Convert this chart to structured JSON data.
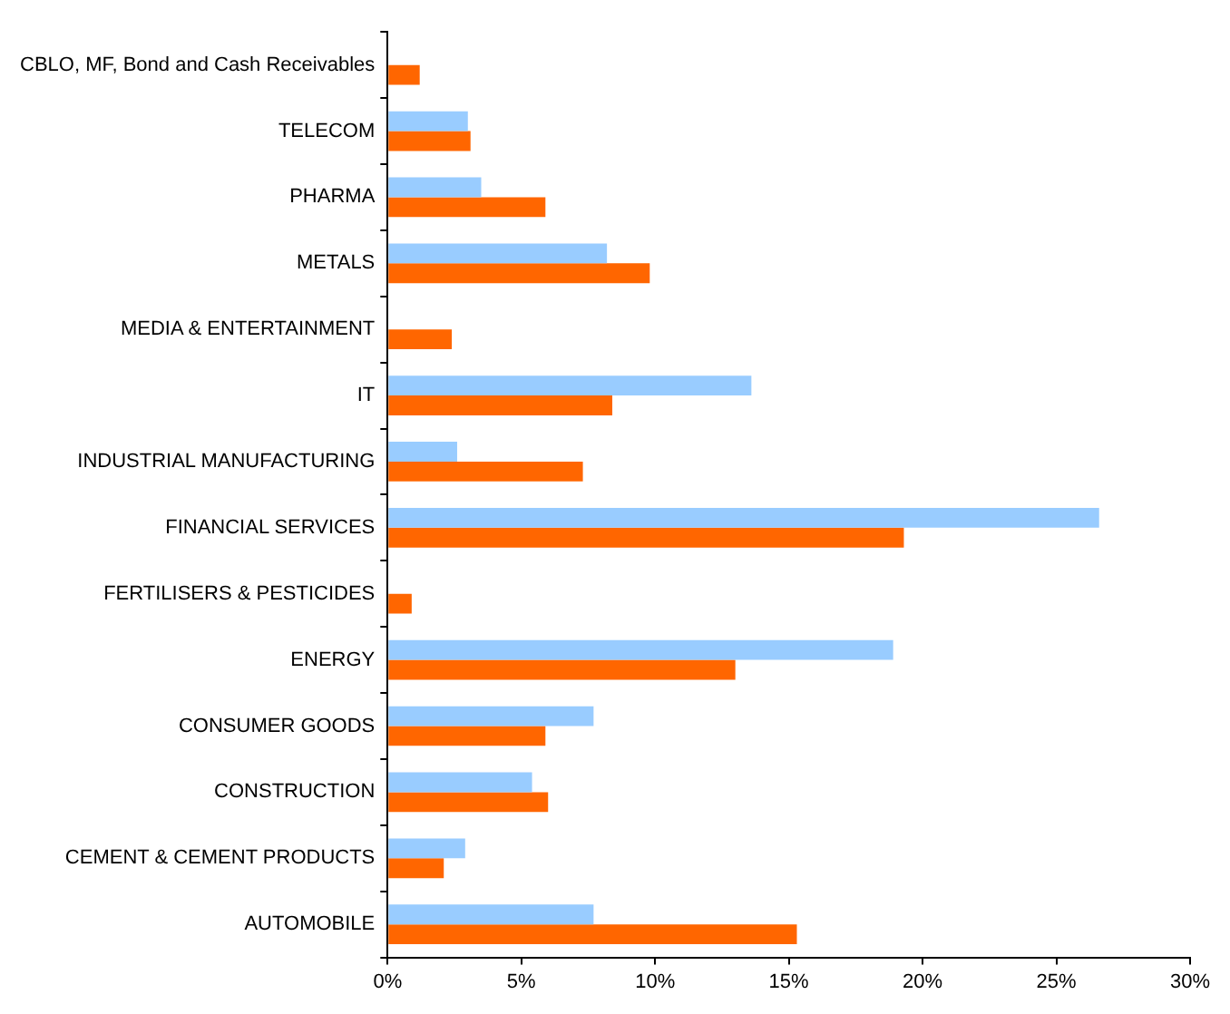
{
  "chart_data": {
    "type": "bar",
    "orientation": "horizontal",
    "categories": [
      "CBLO, MF, Bond and Cash Receivables",
      "TELECOM",
      "PHARMA",
      "METALS",
      "MEDIA & ENTERTAINMENT",
      "IT",
      "INDUSTRIAL MANUFACTURING",
      "FINANCIAL SERVICES",
      "FERTILISERS & PESTICIDES",
      "ENERGY",
      "CONSUMER GOODS",
      "CONSTRUCTION",
      "CEMENT & CEMENT PRODUCTS",
      "AUTOMOBILE"
    ],
    "series": [
      {
        "color": "#99ccff",
        "values": [
          null,
          3.0,
          3.5,
          8.2,
          null,
          13.6,
          2.6,
          26.6,
          null,
          18.9,
          7.7,
          5.4,
          2.9,
          7.7
        ]
      },
      {
        "color": "#ff6600",
        "values": [
          1.2,
          3.1,
          5.9,
          9.8,
          2.4,
          8.4,
          7.3,
          19.3,
          0.9,
          13.0,
          5.9,
          6.0,
          2.1,
          15.3
        ]
      }
    ],
    "xlim": [
      0,
      30
    ],
    "xticks": [
      {
        "value": 0,
        "label": "0%"
      },
      {
        "value": 5,
        "label": "5%"
      },
      {
        "value": 10,
        "label": "10%"
      },
      {
        "value": 15,
        "label": "15%"
      },
      {
        "value": 20,
        "label": "20%"
      },
      {
        "value": 25,
        "label": "25%"
      },
      {
        "value": 30,
        "label": "30%"
      }
    ],
    "grid": false,
    "legend": false
  }
}
